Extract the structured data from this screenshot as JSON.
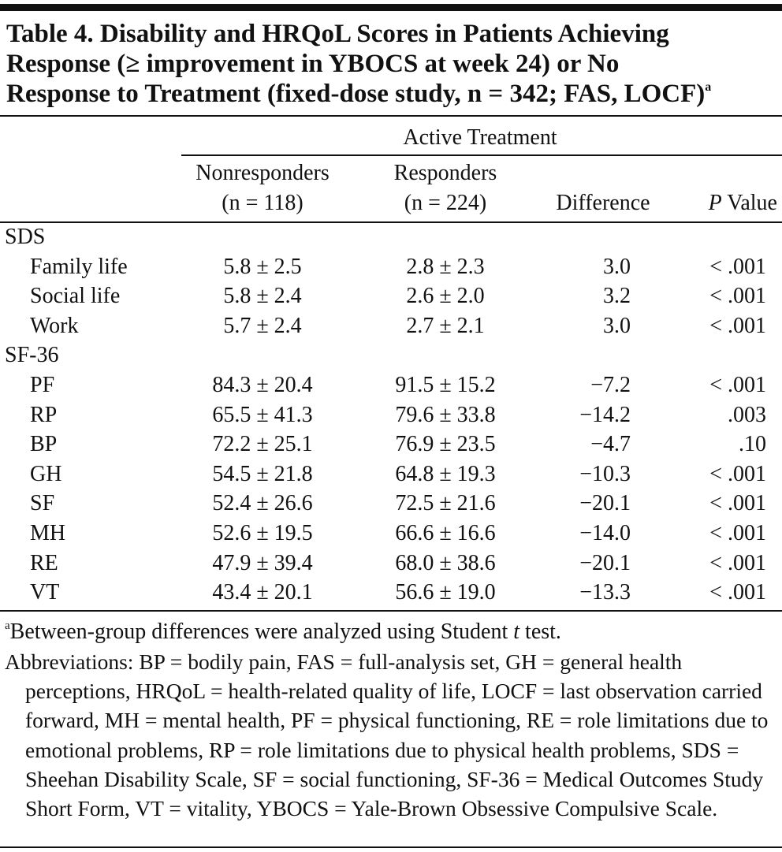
{
  "title": {
    "lines": [
      "Table 4. Disability and HRQoL Scores in Patients Achieving",
      "Response (≥ improvement in YBOCS at week 24) or No",
      "Response to Treatment (fixed-dose study, n = 342; FAS, LOCF)"
    ],
    "mark": "a"
  },
  "table": {
    "group_header": "Active Treatment",
    "columns": [
      {
        "line1": "Nonresponders",
        "line2": "(n = 118)"
      },
      {
        "line1": "Responders",
        "line2": "(n = 224)"
      },
      {
        "line1": "Difference"
      },
      {
        "italic": "P",
        "text": "Value"
      }
    ],
    "sections": [
      {
        "label": "SDS",
        "rows": [
          [
            "Family life",
            "5.8 ± 2.5",
            "2.8 ± 2.3",
            "3.0",
            "< .001"
          ],
          [
            "Social life",
            "5.8 ± 2.4",
            "2.6 ± 2.0",
            "3.2",
            "< .001"
          ],
          [
            "Work",
            "5.7 ± 2.4",
            "2.7 ± 2.1",
            "3.0",
            "< .001"
          ]
        ]
      },
      {
        "label": "SF-36",
        "rows": [
          [
            "PF",
            "84.3 ± 20.4",
            "91.5 ± 15.2",
            "−7.2",
            "< .001"
          ],
          [
            "RP",
            "65.5 ± 41.3",
            "79.6 ± 33.8",
            "−14.2",
            ".003"
          ],
          [
            "BP",
            "72.2 ± 25.1",
            "76.9 ± 23.5",
            "−4.7",
            ".10"
          ],
          [
            "GH",
            "54.5 ± 21.8",
            "64.8 ± 19.3",
            "−10.3",
            "< .001"
          ],
          [
            "SF",
            "52.4 ± 26.6",
            "72.5 ± 21.6",
            "−20.1",
            "< .001"
          ],
          [
            "MH",
            "52.6 ± 19.5",
            "66.6 ± 16.6",
            "−14.0",
            "< .001"
          ],
          [
            "RE",
            "47.9 ± 39.4",
            "68.0 ± 38.6",
            "−20.1",
            "< .001"
          ],
          [
            "VT",
            "43.4 ± 20.1",
            "56.6 ± 19.0",
            "−13.3",
            "< .001"
          ]
        ]
      }
    ]
  },
  "footnotes": {
    "mark": "a",
    "note_before": "Between-group differences were analyzed using Student ",
    "note_italic": "t",
    "note_after": " test.",
    "abbreviations": "Abbreviations: BP = bodily pain, FAS = full-analysis set, GH = general health perceptions, HRQoL = health-related quality of life, LOCF = last observation carried forward, MH = mental health, PF = physical functioning, RE = role limitations due to emotional problems, RP = role limitations due to physical health problems, SDS = Sheehan Disability Scale, SF = social functioning, SF-36 = Medical Outcomes Study Short Form, VT = vitality, YBOCS = Yale-Brown Obsessive Compulsive Scale."
  }
}
